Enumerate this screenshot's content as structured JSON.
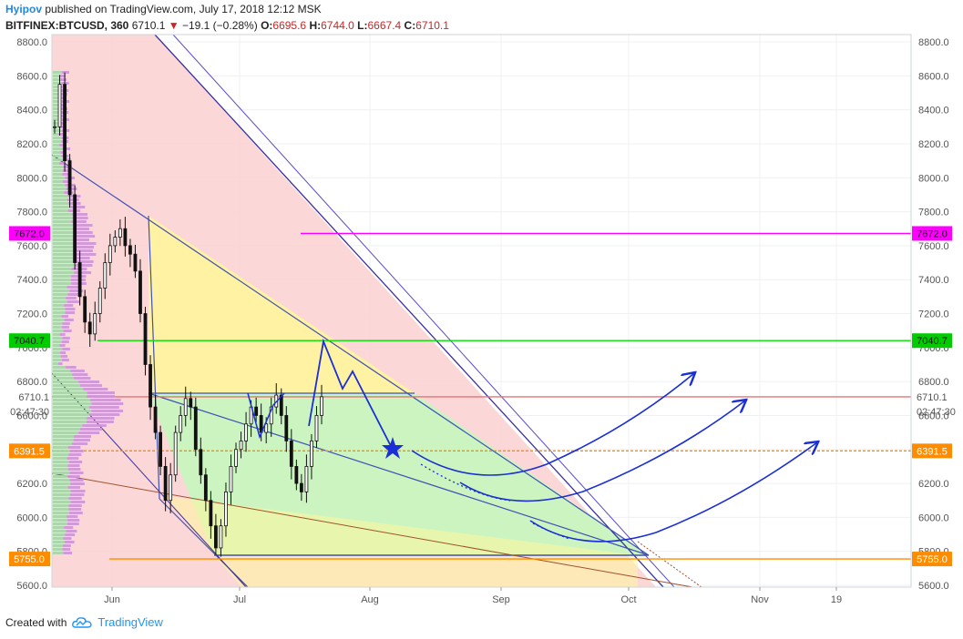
{
  "header": {
    "author": "Hyipov",
    "published_text": "published on TradingView.com, July 17, 2018 12:12 MSK"
  },
  "symbol_bar": {
    "symbol": "BITFINEX:BTCUSD, 360",
    "last": "6710.1",
    "change_arrow": "▼",
    "change": "−19.1 (−0.28%)",
    "open_label": "O:",
    "open": "6695.6",
    "high_label": "H:",
    "high": "6744.0",
    "low_label": "L:",
    "low": "6667.4",
    "close_label": "C:",
    "close": "6710.1"
  },
  "footer": {
    "created_with": "Created with",
    "brand": "TradingView",
    "brand_icon": "tradingview-cloud-icon"
  },
  "colors": {
    "green_line": "#00e000",
    "magenta_line": "#ff00ff",
    "orange_line": "#ff8c00",
    "red_line": "#e57373",
    "arrow_blue": "#1a2fd6",
    "triangle_blue": "#3f51b5",
    "pink_zone": "#fbd3d3",
    "yellow_zone": "#fff59d",
    "green_zone": "#c8f5c0"
  },
  "chart_data": {
    "type": "candlestick",
    "y_axis": {
      "range": [
        5600,
        8800
      ],
      "ticks": [
        "8800.0",
        "8600.0",
        "8400.0",
        "8200.0",
        "8000.0",
        "7800.0",
        "7600.0",
        "7400.0",
        "7200.0",
        "7000.0",
        "6800.0",
        "6600.0",
        "6400.0",
        "6200.0",
        "6000.0",
        "5800.0",
        "5600.0"
      ]
    },
    "x_axis": {
      "ticks": [
        "Jun",
        "Jul",
        "Aug",
        "Sep",
        "Oct",
        "Nov",
        "19"
      ]
    },
    "price_labels": [
      {
        "value": "7672.0",
        "color": "#ff00ff"
      },
      {
        "value": "7040.7",
        "color": "#00cc00"
      },
      {
        "value": "6710.1",
        "color": "#e57373"
      },
      {
        "value": "02:47:30",
        "color": "#e57373"
      },
      {
        "value": "6391.5",
        "color": "#ff8c00"
      },
      {
        "value": "5755.0",
        "color": "#ff8c00"
      }
    ],
    "horizontal_levels": [
      {
        "price": 7672.0,
        "color": "#ff00ff",
        "style": "solid"
      },
      {
        "price": 7040.7,
        "color": "#00e000",
        "style": "solid"
      },
      {
        "price": 6710.1,
        "color": "#e57373",
        "style": "solid"
      },
      {
        "price": 6391.5,
        "color": "#ff8c00",
        "style": "dashed"
      },
      {
        "price": 5755.0,
        "color": "#ff8c00",
        "style": "solid"
      }
    ],
    "close_path": [
      8300,
      8550,
      8100,
      7900,
      7500,
      7300,
      7150,
      7080,
      7200,
      7350,
      7500,
      7600,
      7650,
      7700,
      7600,
      7550,
      7450,
      7200,
      6900,
      6650,
      6500,
      6300,
      6100,
      6250,
      6500,
      6600,
      6700,
      6650,
      6400,
      6250,
      6100,
      5950,
      5820,
      5950,
      6150,
      6300,
      6400,
      6450,
      6550,
      6650,
      6600,
      6500,
      6550,
      6650,
      6720,
      6600,
      6450,
      6300,
      6200,
      6150,
      6300,
      6450,
      6600,
      6710
    ]
  }
}
